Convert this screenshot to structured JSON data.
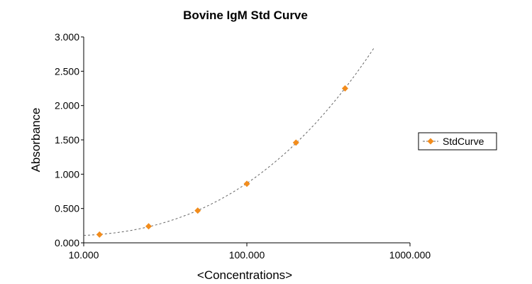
{
  "chart_data": {
    "type": "scatter",
    "title": "Bovine IgM Std Curve",
    "xlabel": "<Concentrations>",
    "ylabel": "Absorbance",
    "xscale": "log",
    "xlim": [
      10,
      1000
    ],
    "ylim": [
      0,
      3
    ],
    "xticks": [
      "10.000",
      "100.000",
      "1000.000"
    ],
    "yticks": [
      "0.000",
      "0.500",
      "1.000",
      "1.500",
      "2.000",
      "2.500",
      "3.000"
    ],
    "grid": false,
    "legend": "right",
    "series": [
      {
        "name": "StdCurve",
        "color": "#f28c1c",
        "marker": "diamond",
        "x": [
          12.5,
          25,
          50,
          100,
          200,
          400
        ],
        "y": [
          0.12,
          0.24,
          0.47,
          0.86,
          1.46,
          2.25
        ]
      }
    ],
    "fit_curve": {
      "style": "dashed",
      "color": "#666666",
      "x_range": [
        10,
        600
      ]
    }
  }
}
